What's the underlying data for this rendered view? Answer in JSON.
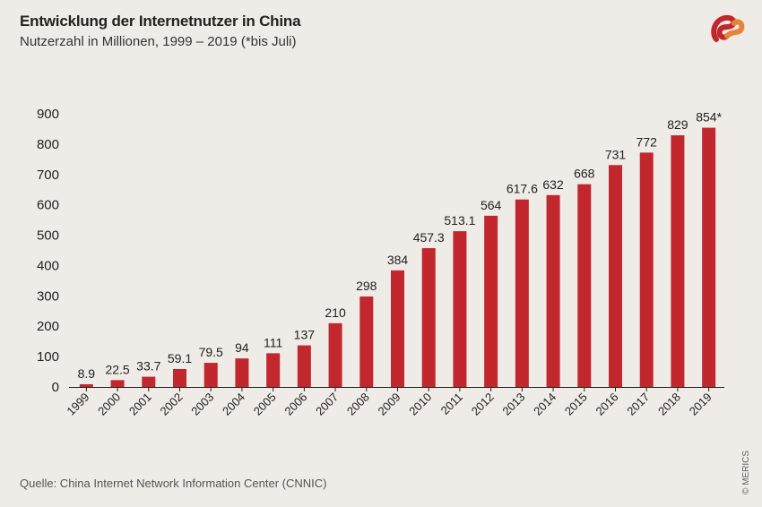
{
  "header": {
    "title": "Entwicklung der Internetnutzer in China",
    "subtitle": "Nutzerzahl in Millionen,  1999 – 2019 (*bis Juli)"
  },
  "footer": {
    "source": "Quelle: China Internet Network Information Center (CNNIC)",
    "copyright": "© MERICS"
  },
  "colors": {
    "bar": "#c1272d",
    "background": "#efebe7",
    "axis": "#222222",
    "logo_orange": "#e8833a",
    "logo_red": "#c1272d"
  },
  "chart_data": {
    "type": "bar",
    "title": "Entwicklung der Internetnutzer in China",
    "subtitle": "Nutzerzahl in Millionen,  1999 – 2019 (*bis Juli)",
    "xlabel": "",
    "ylabel": "",
    "ylim": [
      0,
      900
    ],
    "yticks": [
      0,
      100,
      200,
      300,
      400,
      500,
      600,
      700,
      800,
      900
    ],
    "grid": false,
    "categories": [
      "1999",
      "2000",
      "2001",
      "2002",
      "2003",
      "2004",
      "2005",
      "2006",
      "2007",
      "2008",
      "2009",
      "2010",
      "2011",
      "2012",
      "2013",
      "2014",
      "2015",
      "2016",
      "2017",
      "2018",
      "2019"
    ],
    "values": [
      8.9,
      22.5,
      33.7,
      59.1,
      79.5,
      94,
      111,
      137,
      210,
      298,
      384,
      457.3,
      513.1,
      564,
      617.6,
      632,
      668,
      731,
      772,
      829,
      854
    ],
    "labels": [
      "8.9",
      "22.5",
      "33.7",
      "59.1",
      "79.5",
      "94",
      "111",
      "137",
      "210",
      "298",
      "384",
      "457.3",
      "513.1",
      "564",
      "617.6",
      "632",
      "668",
      "731",
      "772",
      "829",
      "854*"
    ]
  }
}
